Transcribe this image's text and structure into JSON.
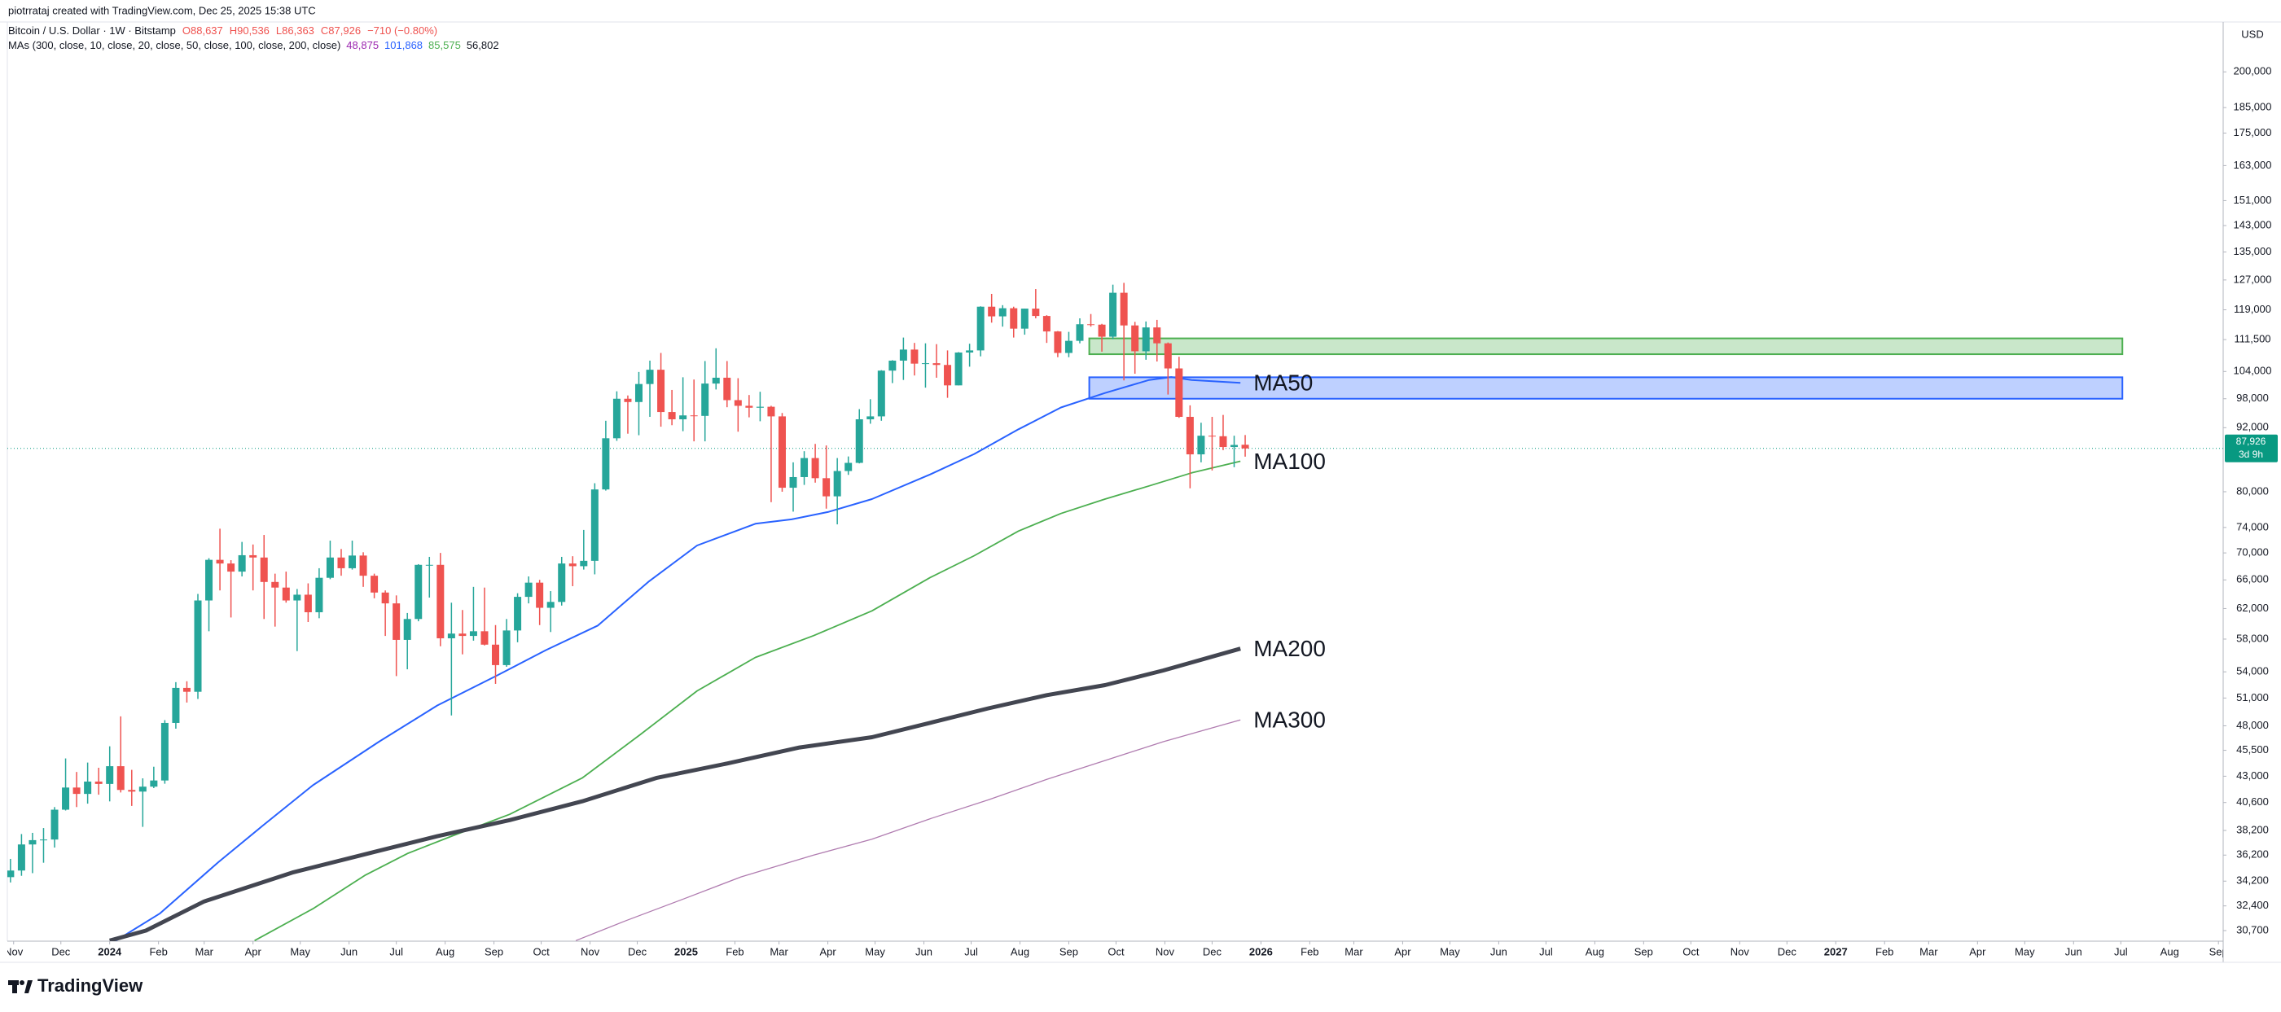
{
  "header": {
    "author_line": "piotrrataj created with TradingView.com, Dec 25, 2025 15:38 UTC"
  },
  "footer": {
    "brand": "TradingView"
  },
  "chart_data": {
    "type": "candlestick",
    "title": "Bitcoin / U.S. Dollar · 1W · Bitstamp",
    "ohlc_legend": [
      "O88,637",
      "H90,536",
      "L86,363",
      "C87,926",
      "−710 (−0.80%)"
    ],
    "indicator_legend": {
      "label": "MAs (300, close, 10, close, 20, close, 50, close, 100, close, 200, close)",
      "values": [
        "48,875",
        "101,868",
        "85,575",
        "56,802"
      ],
      "colors": [
        "#9c27b0",
        "#2962ff",
        "#4caf50",
        "#131722"
      ]
    },
    "currency": "USD",
    "last_price": {
      "value": 87926,
      "label": "87,926",
      "countdown": "3d 9h",
      "color": "#089981"
    },
    "log_scale": true,
    "grid": false,
    "up_color": "#26a69a",
    "down_color": "#ef5350",
    "x": [
      "2023-10-30",
      "2023-11-06",
      "2023-11-13",
      "2023-11-20",
      "2023-11-27",
      "2023-12-04",
      "2023-12-11",
      "2023-12-18",
      "2023-12-25",
      "2024-01-01",
      "2024-01-08",
      "2024-01-15",
      "2024-01-22",
      "2024-01-29",
      "2024-02-05",
      "2024-02-12",
      "2024-02-19",
      "2024-02-26",
      "2024-03-04",
      "2024-03-11",
      "2024-03-18",
      "2024-03-25",
      "2024-04-01",
      "2024-04-08",
      "2024-04-15",
      "2024-04-22",
      "2024-04-29",
      "2024-05-06",
      "2024-05-13",
      "2024-05-20",
      "2024-05-27",
      "2024-06-03",
      "2024-06-10",
      "2024-06-17",
      "2024-06-24",
      "2024-07-01",
      "2024-07-08",
      "2024-07-15",
      "2024-07-22",
      "2024-07-29",
      "2024-08-05",
      "2024-08-12",
      "2024-08-19",
      "2024-08-26",
      "2024-09-02",
      "2024-09-09",
      "2024-09-16",
      "2024-09-23",
      "2024-09-30",
      "2024-10-07",
      "2024-10-14",
      "2024-10-21",
      "2024-10-28",
      "2024-11-04",
      "2024-11-11",
      "2024-11-18",
      "2024-11-25",
      "2024-12-02",
      "2024-12-09",
      "2024-12-16",
      "2024-12-23",
      "2024-12-30",
      "2025-01-06",
      "2025-01-13",
      "2025-01-20",
      "2025-01-27",
      "2025-02-03",
      "2025-02-10",
      "2025-02-17",
      "2025-02-24",
      "2025-03-03",
      "2025-03-10",
      "2025-03-17",
      "2025-03-24",
      "2025-03-31",
      "2025-04-07",
      "2025-04-14",
      "2025-04-21",
      "2025-04-28",
      "2025-05-05",
      "2025-05-12",
      "2025-05-19",
      "2025-05-26",
      "2025-06-02",
      "2025-06-09",
      "2025-06-16",
      "2025-06-23",
      "2025-06-30",
      "2025-07-07",
      "2025-07-14",
      "2025-07-21",
      "2025-07-28",
      "2025-08-04",
      "2025-08-11",
      "2025-08-18",
      "2025-08-25",
      "2025-09-01",
      "2025-09-08",
      "2025-09-15",
      "2025-09-22",
      "2025-09-29",
      "2025-10-06",
      "2025-10-13",
      "2025-10-20",
      "2025-10-27",
      "2025-11-03",
      "2025-11-10",
      "2025-11-17",
      "2025-11-24",
      "2025-12-01",
      "2025-12-08",
      "2025-12-15",
      "2025-12-22"
    ],
    "open": [
      34500,
      35000,
      37050,
      37400,
      37450,
      39970,
      41950,
      41370,
      42500,
      42280,
      43950,
      41730,
      41580,
      42030,
      42600,
      48300,
      52140,
      51700,
      63100,
      68950,
      68400,
      67200,
      69650,
      69300,
      65700,
      64900,
      63100,
      63900,
      61500,
      66300,
      69300,
      67700,
      69600,
      66600,
      64200,
      62700,
      57900,
      60600,
      68200,
      68200,
      58100,
      58700,
      58400,
      59000,
      57300,
      54800,
      59100,
      63600,
      65600,
      62100,
      62900,
      68400,
      68000,
      68800,
      80400,
      89900,
      98000,
      97300,
      101200,
      104400,
      95200,
      93700,
      94500,
      94400,
      101300,
      102600,
      97700,
      96500,
      96100,
      96300,
      94300,
      80700,
      82600,
      86100,
      82400,
      79200,
      83700,
      85200,
      93700,
      94300,
      104200,
      106500,
      109100,
      105800,
      105900,
      105500,
      100900,
      108400,
      108900,
      119800,
      117300,
      119400,
      114200,
      119300,
      117400,
      113500,
      108300,
      111200,
      115300,
      115200,
      112200,
      123500,
      115000,
      108700,
      114500,
      110600,
      104700,
      94200,
      86800,
      90400,
      90300,
      88200,
      88637
    ],
    "high": [
      35900,
      37900,
      38000,
      38400,
      40200,
      44700,
      43400,
      44300,
      43800,
      45900,
      49000,
      43600,
      42800,
      43900,
      48600,
      52800,
      52900,
      64000,
      69200,
      73800,
      68900,
      71700,
      71300,
      72800,
      66900,
      67200,
      64700,
      65500,
      67700,
      71900,
      70600,
      71900,
      70100,
      66900,
      64500,
      63800,
      61400,
      68300,
      69400,
      70000,
      62800,
      61800,
      65000,
      64900,
      59800,
      60600,
      64100,
      66500,
      66000,
      64400,
      69400,
      69500,
      73600,
      81500,
      93400,
      99600,
      98700,
      103900,
      106500,
      108300,
      99900,
      102700,
      102200,
      106400,
      109400,
      106400,
      102500,
      98800,
      99500,
      96500,
      95000,
      85300,
      87400,
      88800,
      88500,
      86100,
      86400,
      95800,
      97900,
      104300,
      106600,
      112000,
      110700,
      110600,
      110400,
      108900,
      108500,
      110500,
      119900,
      123200,
      120200,
      119800,
      119300,
      124500,
      117600,
      113600,
      113400,
      116800,
      117900,
      115400,
      125700,
      126200,
      115900,
      116000,
      116400,
      110800,
      107400,
      96600,
      93000,
      94200,
      94600,
      90400,
      90536
    ],
    "low": [
      34100,
      34600,
      34800,
      35600,
      36800,
      39900,
      40200,
      40500,
      41300,
      40700,
      41500,
      40300,
      38500,
      41900,
      42300,
      47700,
      50500,
      50900,
      59000,
      64500,
      60800,
      66500,
      64500,
      60600,
      59600,
      62800,
      56500,
      60200,
      60700,
      66100,
      66600,
      67500,
      65000,
      63400,
      58400,
      53500,
      54300,
      60300,
      63500,
      57100,
      49100,
      56100,
      57800,
      57200,
      52600,
      54600,
      57600,
      62700,
      59800,
      58900,
      62400,
      65100,
      67500,
      66800,
      80200,
      89400,
      90800,
      90500,
      94200,
      92200,
      92500,
      91300,
      89300,
      89300,
      100000,
      96200,
      91200,
      94100,
      93300,
      78200,
      80000,
      76600,
      81200,
      81600,
      77100,
      74500,
      83000,
      85100,
      92800,
      93400,
      101400,
      102100,
      103100,
      100400,
      102600,
      98200,
      100900,
      105100,
      107500,
      115700,
      114700,
      112000,
      112700,
      116800,
      110700,
      107300,
      107300,
      110600,
      114700,
      108600,
      111600,
      102000,
      103500,
      106700,
      106300,
      98900,
      94000,
      80600,
      85300,
      83800,
      87600,
      84400,
      86363
    ],
    "close": [
      35000,
      37050,
      37400,
      37450,
      39970,
      41950,
      41370,
      42500,
      42280,
      43950,
      41730,
      41580,
      42030,
      42600,
      48300,
      52140,
      51700,
      63100,
      68950,
      68400,
      67200,
      69650,
      69300,
      65700,
      64900,
      63100,
      63900,
      61500,
      66300,
      69300,
      67700,
      69600,
      66600,
      64200,
      62700,
      57900,
      60600,
      68200,
      68200,
      58100,
      58700,
      58400,
      59000,
      57300,
      54800,
      59100,
      63600,
      65600,
      62100,
      62900,
      68400,
      68000,
      68800,
      80400,
      89900,
      98000,
      97300,
      101200,
      104400,
      95200,
      93700,
      94500,
      94400,
      101300,
      102600,
      97700,
      96500,
      96100,
      96300,
      94300,
      80700,
      82600,
      86100,
      82400,
      79200,
      83700,
      85200,
      93700,
      94300,
      104200,
      106500,
      109100,
      105800,
      105900,
      105500,
      100900,
      108400,
      108900,
      119800,
      117300,
      119400,
      114200,
      119300,
      117400,
      113500,
      108300,
      111200,
      115300,
      115200,
      112200,
      123500,
      115000,
      108700,
      114500,
      110600,
      104700,
      94200,
      86800,
      90400,
      90300,
      88200,
      88600,
      87926
    ],
    "series": [
      {
        "name": "MA50",
        "color": "#2962ff",
        "width": 2,
        "x": [
          "2024-01-05",
          "2024-02-02",
          "2024-03-10",
          "2024-04-07",
          "2024-05-09",
          "2024-06-20",
          "2024-07-27",
          "2024-09-02",
          "2024-10-04",
          "2024-11-06",
          "2024-12-08",
          "2025-01-08",
          "2025-02-14",
          "2025-03-09",
          "2025-04-01",
          "2025-04-29",
          "2025-06-05",
          "2025-07-03",
          "2025-07-31",
          "2025-08-27",
          "2025-09-24",
          "2025-10-22",
          "2025-11-05",
          "2025-11-18",
          "2025-12-19"
        ],
        "values": [
          30040,
          31880,
          35640,
          38580,
          42160,
          46360,
          50180,
          53480,
          56620,
          59740,
          65710,
          71140,
          74600,
          75320,
          76530,
          78720,
          83080,
          86870,
          91680,
          96140,
          99240,
          102100,
          102760,
          102100,
          101460
        ]
      },
      {
        "name": "MA100",
        "color": "#4caf50",
        "width": 1.8,
        "x": [
          "2024-04-02",
          "2024-05-09",
          "2024-06-11",
          "2024-07-08",
          "2024-08-05",
          "2024-09-11",
          "2024-10-27",
          "2024-12-03",
          "2025-01-08",
          "2025-02-14",
          "2025-03-23",
          "2025-04-29",
          "2025-06-05",
          "2025-07-03",
          "2025-07-31",
          "2025-08-27",
          "2025-09-24",
          "2025-10-22",
          "2025-11-18",
          "2025-12-19"
        ],
        "values": [
          30040,
          32200,
          34630,
          36320,
          37720,
          39570,
          42830,
          47100,
          51800,
          55720,
          58440,
          61680,
          66340,
          69580,
          73420,
          76290,
          78720,
          81020,
          83360,
          85500
        ]
      },
      {
        "name": "MA200",
        "color": "#434651",
        "width": 5,
        "x": [
          "2024-01-01",
          "2024-01-24",
          "2024-03-01",
          "2024-04-26",
          "2024-06-20",
          "2024-07-27",
          "2024-09-11",
          "2024-10-27",
          "2024-12-13",
          "2025-01-27",
          "2025-03-14",
          "2025-04-29",
          "2025-06-05",
          "2025-07-12",
          "2025-08-18",
          "2025-09-24",
          "2025-10-31",
          "2025-12-19"
        ],
        "values": [
          30040,
          30700,
          32720,
          34850,
          36550,
          37720,
          39070,
          40710,
          42830,
          44210,
          45780,
          46820,
          48310,
          49870,
          51320,
          52460,
          54160,
          56800
        ]
      },
      {
        "name": "MA300",
        "color": "#b07cb0",
        "width": 1.3,
        "x": [
          "2024-10-23",
          "2024-11-24",
          "2024-12-31",
          "2025-02-05",
          "2025-03-23",
          "2025-04-29",
          "2025-06-05",
          "2025-07-12",
          "2025-08-18",
          "2025-09-24",
          "2025-10-31",
          "2025-12-19"
        ],
        "values": [
          30040,
          31380,
          32920,
          34520,
          36200,
          37480,
          39190,
          40840,
          42700,
          44500,
          46360,
          48620
        ]
      }
    ],
    "zones": [
      {
        "x": [
          "2025-09-14",
          "2027-07-02"
        ],
        "y": [
          108000,
          111800
        ],
        "color": "#4caf50"
      },
      {
        "x": [
          "2025-09-14",
          "2027-07-02"
        ],
        "y": [
          98000,
          102700
        ],
        "color": "#2962ff"
      }
    ],
    "xlim": [
      "2023-10-28",
      "2027-09-04"
    ],
    "ylim": [
      30000,
      223000
    ],
    "xticks": [
      {
        "value": "2023-11-01",
        "label": "Nov"
      },
      {
        "value": "2023-12-01",
        "label": "Dec"
      },
      {
        "value": "2024-01-01",
        "label": "2024"
      },
      {
        "value": "2024-02-01",
        "label": "Feb"
      },
      {
        "value": "2024-03-01",
        "label": "Mar"
      },
      {
        "value": "2024-04-01",
        "label": "Apr"
      },
      {
        "value": "2024-05-01",
        "label": "May"
      },
      {
        "value": "2024-06-01",
        "label": "Jun"
      },
      {
        "value": "2024-07-01",
        "label": "Jul"
      },
      {
        "value": "2024-08-01",
        "label": "Aug"
      },
      {
        "value": "2024-09-01",
        "label": "Sep"
      },
      {
        "value": "2024-10-01",
        "label": "Oct"
      },
      {
        "value": "2024-11-01",
        "label": "Nov"
      },
      {
        "value": "2024-12-01",
        "label": "Dec"
      },
      {
        "value": "2025-01-01",
        "label": "2025"
      },
      {
        "value": "2025-02-01",
        "label": "Feb"
      },
      {
        "value": "2025-03-01",
        "label": "Mar"
      },
      {
        "value": "2025-04-01",
        "label": "Apr"
      },
      {
        "value": "2025-05-01",
        "label": "May"
      },
      {
        "value": "2025-06-01",
        "label": "Jun"
      },
      {
        "value": "2025-07-01",
        "label": "Jul"
      },
      {
        "value": "2025-08-01",
        "label": "Aug"
      },
      {
        "value": "2025-09-01",
        "label": "Sep"
      },
      {
        "value": "2025-10-01",
        "label": "Oct"
      },
      {
        "value": "2025-11-01",
        "label": "Nov"
      },
      {
        "value": "2025-12-01",
        "label": "Dec"
      },
      {
        "value": "2026-01-01",
        "label": "2026"
      },
      {
        "value": "2026-02-01",
        "label": "Feb"
      },
      {
        "value": "2026-03-01",
        "label": "Mar"
      },
      {
        "value": "2026-04-01",
        "label": "Apr"
      },
      {
        "value": "2026-05-01",
        "label": "May"
      },
      {
        "value": "2026-06-01",
        "label": "Jun"
      },
      {
        "value": "2026-07-01",
        "label": "Jul"
      },
      {
        "value": "2026-08-01",
        "label": "Aug"
      },
      {
        "value": "2026-09-01",
        "label": "Sep"
      },
      {
        "value": "2026-10-01",
        "label": "Oct"
      },
      {
        "value": "2026-11-01",
        "label": "Nov"
      },
      {
        "value": "2026-12-01",
        "label": "Dec"
      },
      {
        "value": "2027-01-01",
        "label": "2027"
      },
      {
        "value": "2027-02-01",
        "label": "Feb"
      },
      {
        "value": "2027-03-01",
        "label": "Mar"
      },
      {
        "value": "2027-04-01",
        "label": "Apr"
      },
      {
        "value": "2027-05-01",
        "label": "May"
      },
      {
        "value": "2027-06-01",
        "label": "Jun"
      },
      {
        "value": "2027-07-01",
        "label": "Jul"
      },
      {
        "value": "2027-08-01",
        "label": "Aug"
      },
      {
        "value": "2027-09-01",
        "label": "Sep"
      }
    ],
    "yticks": [
      {
        "value": 200000,
        "label": "200,000"
      },
      {
        "value": 185000,
        "label": "185,000"
      },
      {
        "value": 175000,
        "label": "175,000"
      },
      {
        "value": 163000,
        "label": "163,000"
      },
      {
        "value": 151000,
        "label": "151,000"
      },
      {
        "value": 143000,
        "label": "143,000"
      },
      {
        "value": 135000,
        "label": "135,000"
      },
      {
        "value": 127000,
        "label": "127,000"
      },
      {
        "value": 119000,
        "label": "119,000"
      },
      {
        "value": 111500,
        "label": "111,500"
      },
      {
        "value": 104000,
        "label": "104,000"
      },
      {
        "value": 98000,
        "label": "98,000"
      },
      {
        "value": 92000,
        "label": "92,000"
      },
      {
        "value": 80000,
        "label": "80,000"
      },
      {
        "value": 74000,
        "label": "74,000"
      },
      {
        "value": 70000,
        "label": "70,000"
      },
      {
        "value": 66000,
        "label": "66,000"
      },
      {
        "value": 62000,
        "label": "62,000"
      },
      {
        "value": 58000,
        "label": "58,000"
      },
      {
        "value": 54000,
        "label": "54,000"
      },
      {
        "value": 51000,
        "label": "51,000"
      },
      {
        "value": 48000,
        "label": "48,000"
      },
      {
        "value": 45500,
        "label": "45,500"
      },
      {
        "value": 43000,
        "label": "43,000"
      },
      {
        "value": 40600,
        "label": "40,600"
      },
      {
        "value": 38200,
        "label": "38,200"
      },
      {
        "value": 36200,
        "label": "36,200"
      },
      {
        "value": 34200,
        "label": "34,200"
      },
      {
        "value": 32400,
        "label": "32,400"
      },
      {
        "value": 30700,
        "label": "30,700"
      }
    ]
  }
}
